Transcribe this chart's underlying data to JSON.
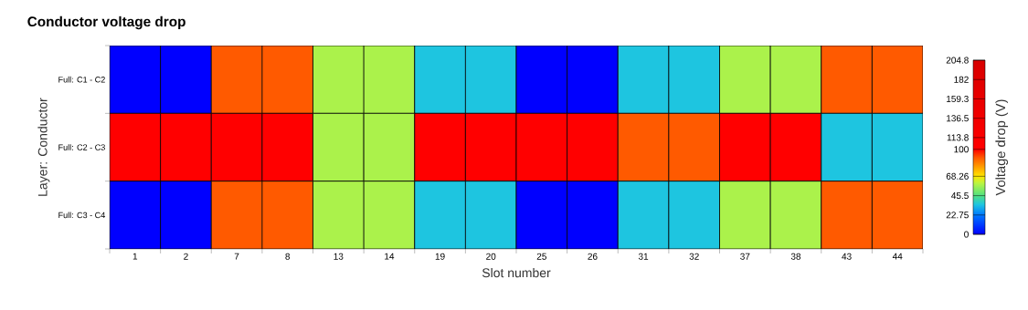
{
  "chart_data": {
    "type": "heatmap",
    "title": "Conductor voltage drop",
    "xlabel": "Slot number",
    "ylabel": "Layer: Conductor",
    "clabel": "Voltage drop (V)",
    "categories": [
      "1",
      "2",
      "7",
      "8",
      "13",
      "14",
      "19",
      "20",
      "25",
      "26",
      "31",
      "32",
      "37",
      "38",
      "43",
      "44"
    ],
    "y_categories": [
      "Full: C1 - C2",
      "Full: C2 - C3",
      "Full: C3 - C4"
    ],
    "cells": [
      [
        0,
        0,
        90,
        90,
        58,
        58,
        35,
        35,
        0,
        0,
        35,
        35,
        58,
        58,
        90,
        90
      ],
      [
        100,
        100,
        100,
        100,
        58,
        58,
        100,
        100,
        100,
        100,
        90,
        90,
        100,
        100,
        35,
        35
      ],
      [
        0,
        0,
        90,
        90,
        58,
        58,
        35,
        35,
        0,
        0,
        35,
        35,
        58,
        58,
        90,
        90
      ]
    ],
    "clim": [
      0,
      204.8
    ],
    "cticks": [
      0,
      22.75,
      45.5,
      68.26,
      100,
      113.8,
      136.5,
      159.3,
      182,
      204.8
    ]
  }
}
